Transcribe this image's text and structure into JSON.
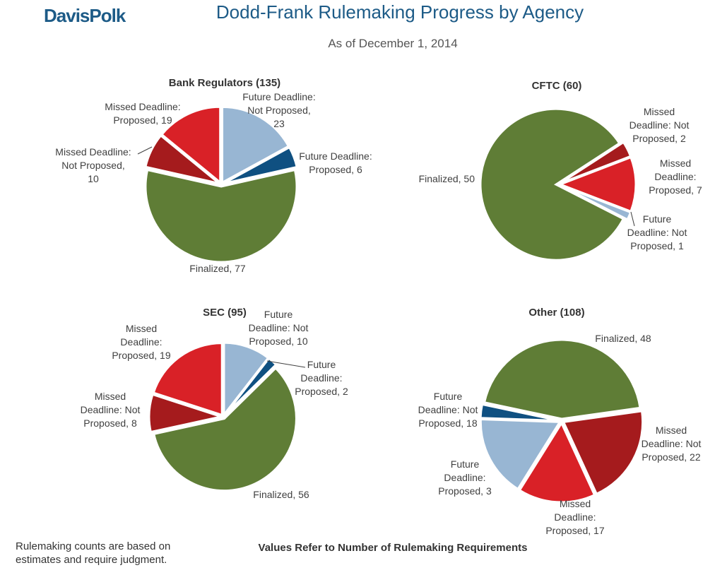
{
  "logo": "DavisPolk",
  "title": "Dodd-Frank Rulemaking Progress by Agency",
  "subtitle": "As of December 1, 2014",
  "footer_note": [
    "Rulemaking counts are based on",
    "estimates and require judgment."
  ],
  "footer_caption": "Values Refer to Number of Rulemaking Requirements",
  "colors": {
    "future_not_proposed": "#98b6d3",
    "future_proposed": "#0f5081",
    "finalized": "#5f7d36",
    "missed_not_proposed": "#a51b1d",
    "missed_proposed": "#d92127",
    "brand": "#1d5b87"
  },
  "chart_data": [
    {
      "type": "pie",
      "title": "Bank Regulators (135)",
      "slices": [
        {
          "key": "future_not_proposed",
          "name": "Future Deadline: Not Proposed",
          "value": 23,
          "label": [
            "Future Deadline:",
            "Not Proposed,",
            "23"
          ]
        },
        {
          "key": "future_proposed",
          "name": "Future Deadline: Proposed",
          "value": 6,
          "label": [
            "Future Deadline:",
            "Proposed, 6"
          ]
        },
        {
          "key": "finalized",
          "name": "Finalized",
          "value": 77,
          "label": [
            "Finalized, 77"
          ]
        },
        {
          "key": "missed_not_proposed",
          "name": "Missed Deadline: Not Proposed",
          "value": 10,
          "label": [
            "Missed Deadline:",
            "Not Proposed,",
            "10"
          ]
        },
        {
          "key": "missed_proposed",
          "name": "Missed Deadline: Proposed",
          "value": 19,
          "label": [
            "Missed Deadline:",
            "Proposed, 19"
          ]
        }
      ]
    },
    {
      "type": "pie",
      "title": "CFTC (60)",
      "slices": [
        {
          "key": "future_not_proposed",
          "name": "Future Deadline: Not Proposed",
          "value": 1,
          "label": [
            "Future",
            "Deadline: Not",
            "Proposed, 1"
          ]
        },
        {
          "key": "finalized",
          "name": "Finalized",
          "value": 50,
          "label": [
            "Finalized, 50"
          ]
        },
        {
          "key": "missed_not_proposed",
          "name": "Missed Deadline: Not Proposed",
          "value": 2,
          "label": [
            "Missed",
            "Deadline: Not",
            "Proposed, 2"
          ]
        },
        {
          "key": "missed_proposed",
          "name": "Missed Deadline: Proposed",
          "value": 7,
          "label": [
            "Missed",
            "Deadline:",
            "Proposed, 7"
          ]
        }
      ]
    },
    {
      "type": "pie",
      "title": "SEC (95)",
      "slices": [
        {
          "key": "future_not_proposed",
          "name": "Future Deadline: Not Proposed",
          "value": 10,
          "label": [
            "Future",
            "Deadline: Not",
            "Proposed, 10"
          ]
        },
        {
          "key": "future_proposed",
          "name": "Future Deadline: Proposed",
          "value": 2,
          "label": [
            "Future",
            "Deadline:",
            "Proposed, 2"
          ]
        },
        {
          "key": "finalized",
          "name": "Finalized",
          "value": 56,
          "label": [
            "Finalized, 56"
          ]
        },
        {
          "key": "missed_not_proposed",
          "name": "Missed Deadline: Not Proposed",
          "value": 8,
          "label": [
            "Missed",
            "Deadline: Not",
            "Proposed, 8"
          ]
        },
        {
          "key": "missed_proposed",
          "name": "Missed Deadline: Proposed",
          "value": 19,
          "label": [
            "Missed",
            "Deadline:",
            "Proposed, 19"
          ]
        }
      ]
    },
    {
      "type": "pie",
      "title": "Other (108)",
      "slices": [
        {
          "key": "future_not_proposed",
          "name": "Future Deadline: Not Proposed",
          "value": 18,
          "label": [
            "Future",
            "Deadline: Not",
            "Proposed, 18"
          ]
        },
        {
          "key": "future_proposed",
          "name": "Future Deadline: Proposed",
          "value": 3,
          "label": [
            "Future",
            "Deadline:",
            "Proposed, 3"
          ]
        },
        {
          "key": "finalized",
          "name": "Finalized",
          "value": 48,
          "label": [
            "Finalized, 48"
          ]
        },
        {
          "key": "missed_not_proposed",
          "name": "Missed Deadline: Not Proposed",
          "value": 22,
          "label": [
            "Missed",
            "Deadline: Not",
            "Proposed, 22"
          ]
        },
        {
          "key": "missed_proposed",
          "name": "Missed Deadline: Proposed",
          "value": 17,
          "label": [
            "Missed",
            "Deadline:",
            "Proposed, 17"
          ]
        }
      ]
    }
  ]
}
